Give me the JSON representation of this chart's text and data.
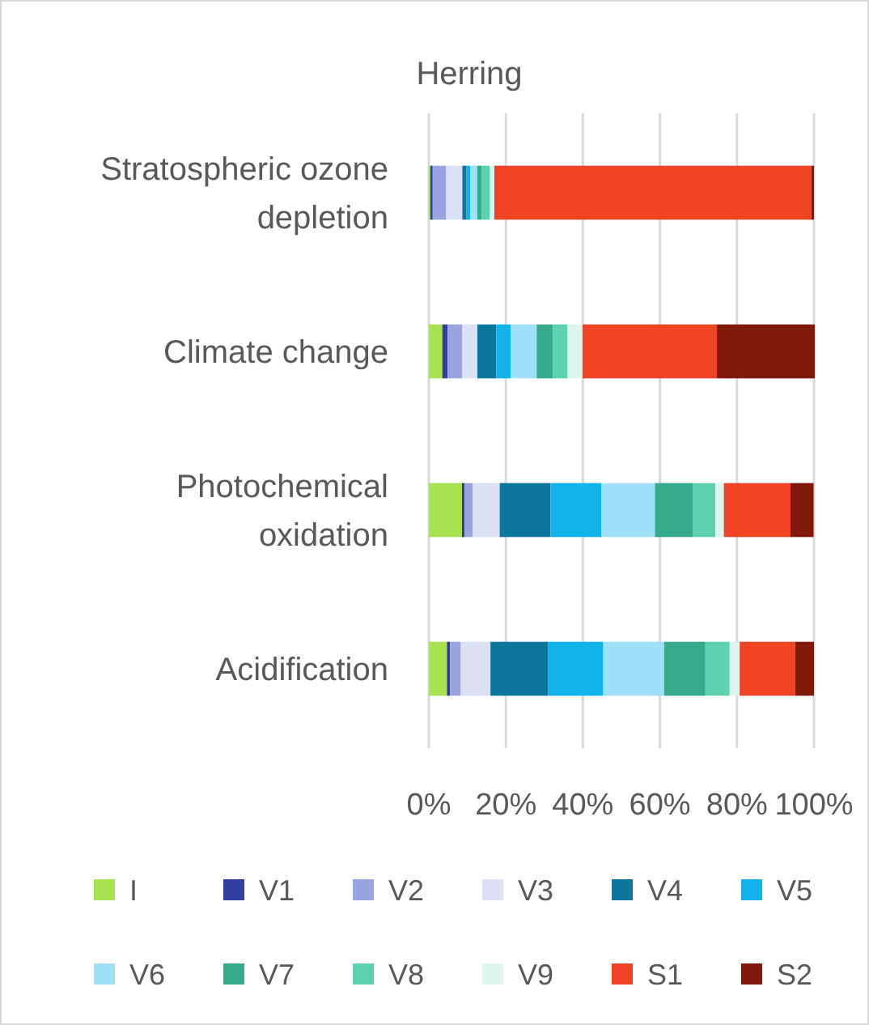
{
  "chart_data": {
    "type": "bar",
    "orientation": "horizontal",
    "stacked": true,
    "title": "Herring",
    "categories": [
      "Stratospheric ozone depletion",
      "Climate change",
      "Photochemical oxidation",
      "Acidification"
    ],
    "series": [
      {
        "name": "I",
        "color": "#a6e34f",
        "values": [
          0.4,
          3.5,
          8.6,
          4.7
        ]
      },
      {
        "name": "V1",
        "color": "#2e3f9e",
        "values": [
          0.6,
          1.4,
          0.7,
          0.8
        ]
      },
      {
        "name": "V2",
        "color": "#97a4e0",
        "values": [
          3.5,
          3.8,
          2.1,
          2.8
        ]
      },
      {
        "name": "V3",
        "color": "#dbe0f5",
        "values": [
          4.2,
          3.9,
          7.0,
          7.7
        ]
      },
      {
        "name": "V4",
        "color": "#0c769c",
        "values": [
          1.1,
          4.9,
          13.2,
          14.9
        ]
      },
      {
        "name": "V5",
        "color": "#12b3eb",
        "values": [
          1.0,
          3.8,
          13.2,
          14.4
        ]
      },
      {
        "name": "V6",
        "color": "#9fdff8",
        "values": [
          1.8,
          6.7,
          13.9,
          15.8
        ]
      },
      {
        "name": "V7",
        "color": "#36ab8c",
        "values": [
          1.1,
          4.2,
          9.8,
          10.7
        ]
      },
      {
        "name": "V8",
        "color": "#5dd0b0",
        "values": [
          2.1,
          3.8,
          5.9,
          6.3
        ]
      },
      {
        "name": "V9",
        "color": "#dcf5ee",
        "values": [
          1.2,
          3.9,
          2.2,
          2.6
        ]
      },
      {
        "name": "S1",
        "color": "#f04323",
        "values": [
          82.3,
          34.9,
          17.3,
          14.4
        ]
      },
      {
        "name": "S2",
        "color": "#7f1a0a",
        "values": [
          0.7,
          25.4,
          6.0,
          4.9
        ]
      }
    ],
    "xlim": [
      0,
      100
    ],
    "xticks": [
      {
        "value": 0,
        "label": "0%"
      },
      {
        "value": 20,
        "label": "20%"
      },
      {
        "value": 40,
        "label": "40%"
      },
      {
        "value": 60,
        "label": "60%"
      },
      {
        "value": 80,
        "label": "80%"
      },
      {
        "value": 100,
        "label": "100%"
      }
    ],
    "grid": "x",
    "legend": "bottom"
  }
}
